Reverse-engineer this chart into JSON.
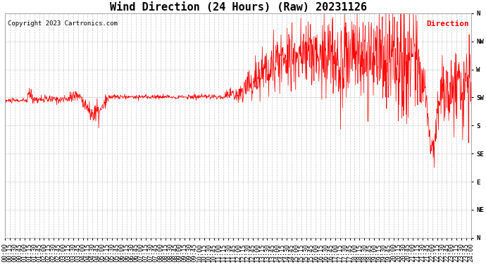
{
  "title": "Wind Direction (24 Hours) (Raw) 20231126",
  "copyright": "Copyright 2023 Cartronics.com",
  "legend_label": "Direction",
  "line_color": "red",
  "background_color": "#ffffff",
  "grid_color": "#bbbbbb",
  "ytick_labels": [
    "N",
    "NW",
    "W",
    "SW",
    "S",
    "SE",
    "E",
    "NE",
    "N"
  ],
  "ytick_values": [
    360,
    315,
    270,
    225,
    180,
    135,
    90,
    45,
    0
  ],
  "ylim": [
    0,
    360
  ],
  "title_fontsize": 11,
  "copyright_fontsize": 6.5,
  "legend_fontsize": 8,
  "tick_fontsize": 6.5,
  "xtick_interval_minutes": 15,
  "total_minutes": 1440
}
